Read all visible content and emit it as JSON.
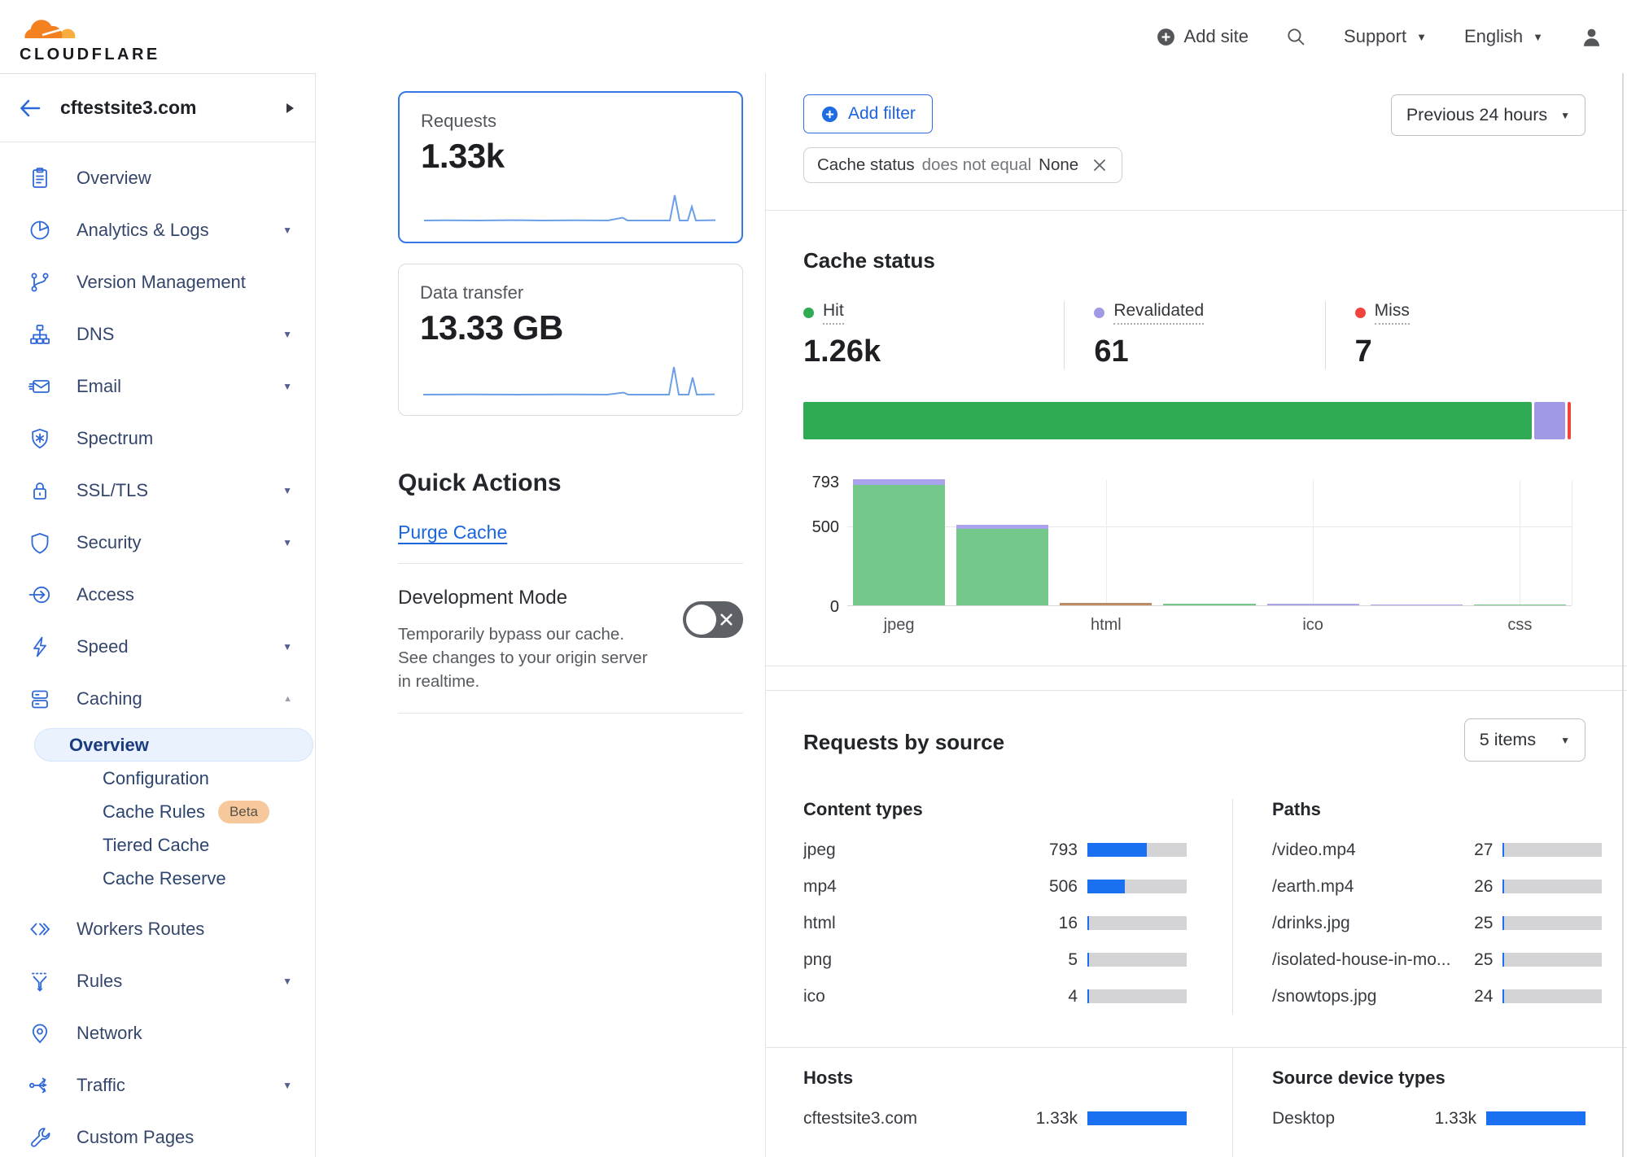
{
  "header": {
    "brand": "CLOUDFLARE",
    "add_site_label": "Add site",
    "support_label": "Support",
    "language_label": "English"
  },
  "sidebar": {
    "site_name": "cftestsite3.com",
    "items": [
      {
        "label": "Overview",
        "icon": "clipboard-icon"
      },
      {
        "label": "Analytics & Logs",
        "icon": "analytics-icon",
        "caret": "down"
      },
      {
        "label": "Version Management",
        "icon": "branch-icon"
      },
      {
        "label": "DNS",
        "icon": "dns-icon",
        "caret": "down"
      },
      {
        "label": "Email",
        "icon": "email-icon",
        "caret": "down"
      },
      {
        "label": "Spectrum",
        "icon": "spectrum-icon"
      },
      {
        "label": "SSL/TLS",
        "icon": "lock-icon",
        "caret": "down"
      },
      {
        "label": "Security",
        "icon": "shield-icon",
        "caret": "down"
      },
      {
        "label": "Access",
        "icon": "access-icon"
      },
      {
        "label": "Speed",
        "icon": "bolt-icon",
        "caret": "down"
      },
      {
        "label": "Caching",
        "icon": "cache-icon",
        "caret": "up",
        "expanded": true,
        "children": [
          {
            "label": "Overview",
            "active": true
          },
          {
            "label": "Configuration"
          },
          {
            "label": "Cache Rules",
            "badge": "Beta"
          },
          {
            "label": "Tiered Cache"
          },
          {
            "label": "Cache Reserve"
          }
        ]
      },
      {
        "label": "Workers Routes",
        "icon": "code-icon"
      },
      {
        "label": "Rules",
        "icon": "funnel-icon",
        "caret": "down"
      },
      {
        "label": "Network",
        "icon": "pin-icon"
      },
      {
        "label": "Traffic",
        "icon": "traffic-icon",
        "caret": "down"
      },
      {
        "label": "Custom Pages",
        "icon": "wrench-icon"
      }
    ]
  },
  "metric_cards": {
    "requests": {
      "label": "Requests",
      "value": "1.33k",
      "selected": true
    },
    "data_transfer": {
      "label": "Data transfer",
      "value": "13.33 GB",
      "selected": false
    }
  },
  "quick_actions": {
    "title": "Quick Actions",
    "purge_cache_label": "Purge Cache",
    "development_mode": {
      "title": "Development Mode",
      "description": "Temporarily bypass our cache. See changes to your origin server in realtime.",
      "enabled": false
    }
  },
  "filter_bar": {
    "add_filter_label": "Add filter",
    "chip": {
      "field": "Cache status",
      "operator": "does not equal",
      "value": "None"
    },
    "time_range": "Previous 24 hours"
  },
  "cache_status": {
    "title": "Cache status",
    "legend": [
      {
        "label": "Hit",
        "value": "1.26k",
        "color": "#2fab53"
      },
      {
        "label": "Revalidated",
        "value": "61",
        "color": "#a09ae6"
      },
      {
        "label": "Miss",
        "value": "7",
        "color": "#f0443c"
      }
    ],
    "distribution_bar": [
      {
        "kind": "hit",
        "percent": 94.6
      },
      {
        "kind": "revalidated",
        "percent": 4.0
      },
      {
        "kind": "miss",
        "percent": 0.5
      }
    ]
  },
  "chart_data": {
    "type": "bar",
    "stacked": true,
    "title": "Cache status by content type",
    "ylim": [
      0,
      793
    ],
    "yticks": [
      "0",
      "500",
      "793"
    ],
    "grid": true,
    "legend_position": "above",
    "bars": [
      {
        "label": "jpeg",
        "tick": "jpeg",
        "segments": [
          {
            "kind": "hit",
            "value": 758
          },
          {
            "kind": "revalidated",
            "value": 35
          }
        ]
      },
      {
        "label": "mp4",
        "tick": "",
        "segments": [
          {
            "kind": "hit",
            "value": 480
          },
          {
            "kind": "revalidated",
            "value": 26
          }
        ]
      },
      {
        "label": "html",
        "tick": "html",
        "segments": [
          {
            "kind": "miss-mixed",
            "value": 16
          }
        ]
      },
      {
        "label": "png",
        "tick": "",
        "segments": [
          {
            "kind": "hit",
            "value": 5
          }
        ]
      },
      {
        "label": "ico",
        "tick": "ico",
        "segments": [
          {
            "kind": "revalidated",
            "value": 4
          }
        ]
      },
      {
        "label": "",
        "tick": "",
        "segments": [
          {
            "kind": "revalidated",
            "value": 2
          }
        ]
      },
      {
        "label": "css",
        "tick": "css",
        "segments": [
          {
            "kind": "hit",
            "value": 2
          }
        ]
      }
    ]
  },
  "requests_by_source": {
    "title": "Requests by source",
    "items_select": "5 items",
    "total_requests": 1330,
    "tables": [
      {
        "title": "Content types",
        "rows": [
          [
            "jpeg",
            "793",
            0.596
          ],
          [
            "mp4",
            "506",
            0.38
          ],
          [
            "html",
            "16",
            0.012
          ],
          [
            "png",
            "5",
            0.004
          ],
          [
            "ico",
            "4",
            0.003
          ]
        ]
      },
      {
        "title": "Paths",
        "rows": [
          [
            "/video.mp4",
            "27",
            0.02
          ],
          [
            "/earth.mp4",
            "26",
            0.02
          ],
          [
            "/drinks.jpg",
            "25",
            0.019
          ],
          [
            "/isolated-house-in-mo...",
            "25",
            0.019
          ],
          [
            "/snowtops.jpg",
            "24",
            0.018
          ]
        ]
      },
      {
        "title": "Hosts",
        "rows": [
          [
            "cftestsite3.com",
            "1.33k",
            1.0
          ]
        ]
      },
      {
        "title": "Source device types",
        "rows": [
          [
            "Desktop",
            "1.33k",
            1.0
          ]
        ]
      }
    ]
  },
  "colors": {
    "accent_blue": "#1f6be0",
    "hit_green": "#2fab53",
    "hit_green_light": "#74c88a",
    "revalidated_purple": "#a09ae6",
    "revalidated_purple_light": "#aaa4ec",
    "miss_red": "#f0443c",
    "miss_mixed_brown": "#bd8a62",
    "bar_fill_blue": "#1a70f0",
    "brand_orange": "#f48120",
    "brand_orange_light": "#faad3f",
    "selected_card_border": "#3478e8"
  }
}
